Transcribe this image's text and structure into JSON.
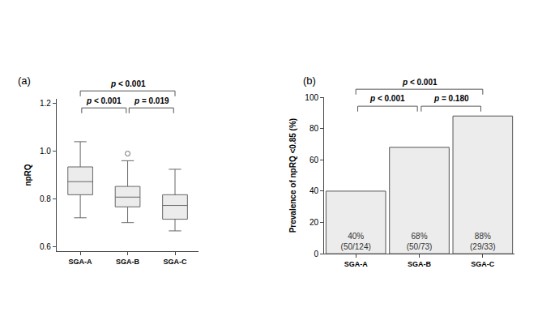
{
  "chart_data": [
    {
      "type": "box",
      "panel": "(a)",
      "y_label": "npRQ",
      "categories": [
        "SGA-A",
        "SGA-B",
        "SGA-C"
      ],
      "lower_whisker": [
        0.72,
        0.7,
        0.665
      ],
      "q1": [
        0.817,
        0.766,
        0.714
      ],
      "median": [
        0.872,
        0.807,
        0.772
      ],
      "q3": [
        0.934,
        0.852,
        0.817
      ],
      "upper_whisker": [
        1.04,
        0.96,
        0.924
      ],
      "outliers": [
        [],
        [
          0.99
        ],
        []
      ],
      "color": "#ececec",
      "ylim": [
        0.58,
        1.22
      ],
      "yticks": [
        0.6,
        0.8,
        {
          "value": 1,
          "label": "1.0"
        },
        1.2
      ],
      "grid": false,
      "comparisons": [
        {
          "from": "SGA-A",
          "to": "SGA-C",
          "label": "p < 0.001"
        },
        {
          "from": "SGA-A",
          "to": "SGA-B",
          "label": "p < 0.001"
        },
        {
          "from": "SGA-B",
          "to": "SGA-C",
          "label": "p = 0.019"
        }
      ]
    },
    {
      "type": "bar",
      "panel": "(b)",
      "y_label": "Prevalence of npRQ <0.85 (%)",
      "categories": [
        "SGA-A",
        "SGA-B",
        "SGA-C"
      ],
      "values": [
        40,
        68,
        88
      ],
      "value_labels": [
        "40%\n(50/124)",
        "68%\n(50/73)",
        "88%\n(29/33)"
      ],
      "data_labels": true,
      "color": "#ececec",
      "ylim": [
        0,
        100
      ],
      "yticks": [
        0,
        20,
        40,
        60,
        80,
        100
      ],
      "grid": false,
      "comparisons": [
        {
          "from": "SGA-A",
          "to": "SGA-C",
          "label": "p < 0.001"
        },
        {
          "from": "SGA-A",
          "to": "SGA-B",
          "label": "p < 0.001"
        },
        {
          "from": "SGA-B",
          "to": "SGA-C",
          "label": "p = 0.180"
        }
      ]
    }
  ]
}
